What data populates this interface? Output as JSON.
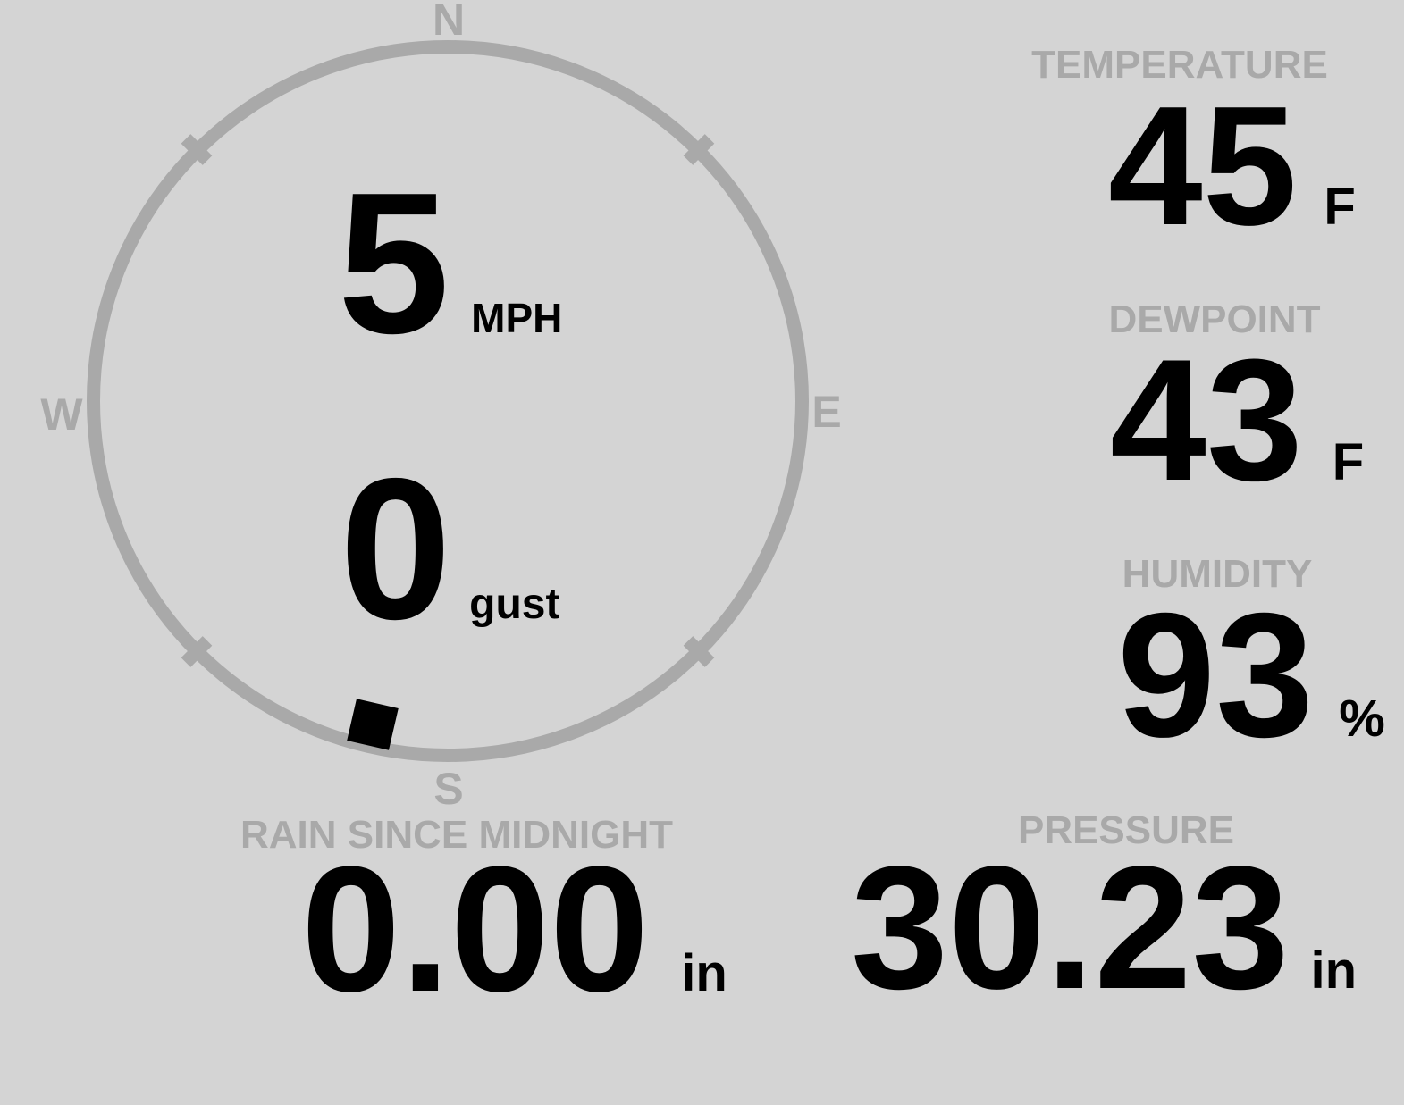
{
  "colors": {
    "background": "#d4d4d4",
    "muted": "#a9a9a9",
    "ink": "#000000"
  },
  "wind": {
    "speed": "5",
    "speed_unit": "MPH",
    "gust": "0",
    "gust_unit": "gust",
    "direction_degrees": 193,
    "compass_cardinals": {
      "north": "N",
      "east": "E",
      "south": "S",
      "west": "W"
    }
  },
  "metrics": {
    "temperature": {
      "label": "TEMPERATURE",
      "value": "45",
      "unit": "F"
    },
    "dewpoint": {
      "label": "DEWPOINT",
      "value": "43",
      "unit": "F"
    },
    "humidity": {
      "label": "HUMIDITY",
      "value": "93",
      "unit": "%"
    },
    "rain_since_midnight": {
      "label": "RAIN SINCE MIDNIGHT",
      "value": "0.00",
      "unit": "in"
    },
    "pressure": {
      "label": "PRESSURE",
      "value": "30.23",
      "unit": "in"
    }
  }
}
